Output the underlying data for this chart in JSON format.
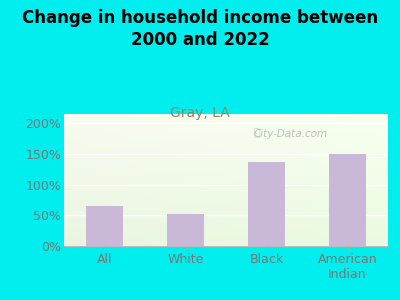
{
  "title": "Change in household income between\n2000 and 2022",
  "subtitle": "Gray, LA",
  "categories": [
    "All",
    "White",
    "Black",
    "American\nIndian"
  ],
  "values": [
    65,
    52,
    137,
    150
  ],
  "bar_color": "#c9b8d8",
  "background_color": "#00eeee",
  "plot_bg_color_top": "#f8fbf0",
  "plot_bg_color_bottom": "#e8f5e0",
  "title_fontsize": 12,
  "subtitle_fontsize": 10,
  "tick_fontsize": 9,
  "yticks": [
    0,
    50,
    100,
    150,
    200
  ],
  "ylim": [
    0,
    215
  ],
  "watermark": "City-Data.com",
  "subtitle_color": "#888866",
  "tick_color": "#777777",
  "grid_color": "#ffffff"
}
